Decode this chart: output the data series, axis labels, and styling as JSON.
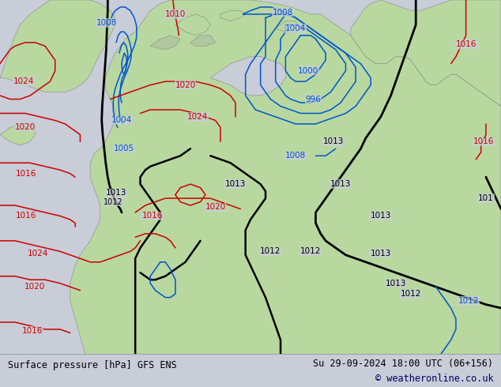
{
  "title_left": "Surface pressure [hPa] GFS ENS",
  "title_right": "Su 29-09-2024 18:00 UTC (06+156)",
  "copyright": "© weatheronline.co.uk",
  "bg_color": "#c8cdd8",
  "land_color": "#b8d8a0",
  "coast_color": "#888888",
  "footer_bg": "#d4d4d4",
  "red": "#cc0000",
  "blue": "#0055cc",
  "black": "#000000",
  "figsize": [
    6.34,
    4.9
  ],
  "dpi": 100
}
